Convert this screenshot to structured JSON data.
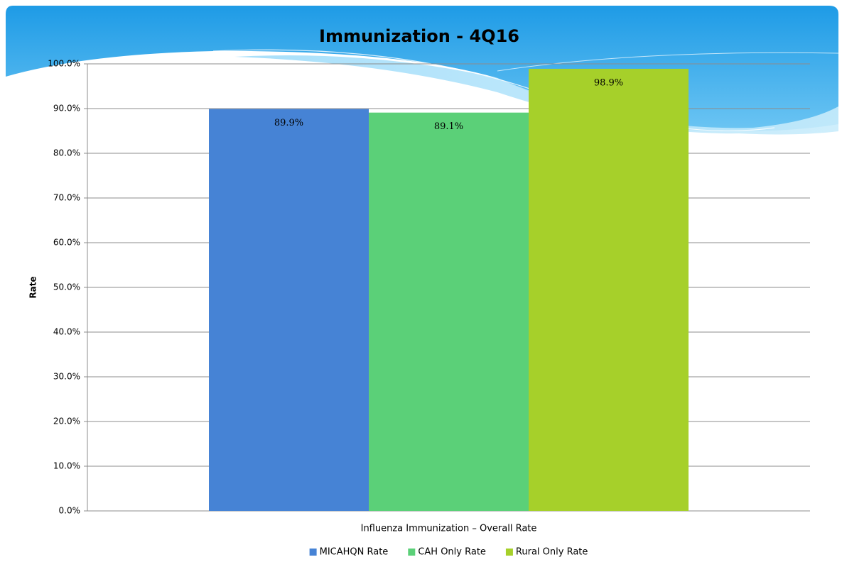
{
  "chart_data": {
    "type": "bar",
    "title": "Immunization - 4Q16",
    "y_label": "Rate",
    "categories": [
      "Influenza Immunization – Overall Rate"
    ],
    "series": [
      {
        "name": "MICAHQN Rate",
        "color": "#4683d5",
        "values": [
          89.9
        ],
        "value_labels": [
          "89.9%"
        ]
      },
      {
        "name": "CAH Only Rate",
        "color": "#5bd078",
        "values": [
          89.1
        ],
        "value_labels": [
          "89.1%"
        ]
      },
      {
        "name": "Rural Only Rate",
        "color": "#a6d02a",
        "values": [
          98.9
        ],
        "value_labels": [
          "98.9%"
        ]
      }
    ],
    "ylim": [
      0,
      100
    ],
    "yticks": [
      {
        "value": 0,
        "label": "0.0%"
      },
      {
        "value": 10,
        "label": "10.0%"
      },
      {
        "value": 20,
        "label": "20.0%"
      },
      {
        "value": 30,
        "label": "30.0%"
      },
      {
        "value": 40,
        "label": "40.0%"
      },
      {
        "value": 50,
        "label": "50.0%"
      },
      {
        "value": 60,
        "label": "60.0%"
      },
      {
        "value": 70,
        "label": "70.0%"
      },
      {
        "value": 80,
        "label": "80.0%"
      },
      {
        "value": 90,
        "label": "90.0%"
      },
      {
        "value": 100,
        "label": "100.0%"
      }
    ],
    "grid": true,
    "legend": "bottom"
  }
}
